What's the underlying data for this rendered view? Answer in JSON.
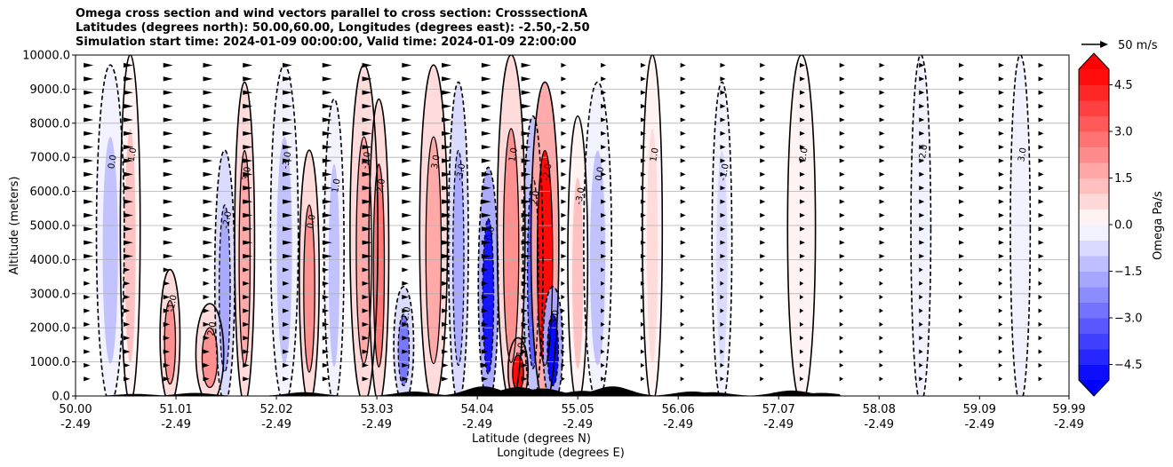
{
  "title_lines": [
    "Omega cross section and wind vectors parallel to cross section: CrosssectionA",
    "Latitudes (degrees north): 50.00,60.00, Longitudes (degrees east): -2.50,-2.50",
    "Simulation start time: 2024-01-09 00:00:00, Valid time: 2024-01-09 22:00:00"
  ],
  "reference_arrow_label": "50 m/s",
  "chart_data": {
    "type": "heatmap",
    "title": "Omega cross section and wind vectors parallel to cross section: CrosssectionA",
    "ylabel": "Altitude (meters)",
    "xlabel_line1": "Latitude (degrees N)",
    "xlabel_line2": "Longitude (degrees E)",
    "y_ticks": [
      "0.0",
      "1000.0",
      "2000.0",
      "3000.0",
      "4000.0",
      "5000.0",
      "6000.0",
      "7000.0",
      "8000.0",
      "9000.0",
      "10000.0"
    ],
    "ylim": [
      0,
      10000
    ],
    "x_ticks": [
      {
        "lat": "50.00",
        "lon": "-2.49"
      },
      {
        "lat": "51.01",
        "lon": "-2.49"
      },
      {
        "lat": "52.02",
        "lon": "-2.49"
      },
      {
        "lat": "53.03",
        "lon": "-2.49"
      },
      {
        "lat": "54.04",
        "lon": "-2.49"
      },
      {
        "lat": "55.05",
        "lon": "-2.49"
      },
      {
        "lat": "56.06",
        "lon": "-2.49"
      },
      {
        "lat": "57.07",
        "lon": "-2.49"
      },
      {
        "lat": "58.08",
        "lon": "-2.49"
      },
      {
        "lat": "59.09",
        "lon": "-2.49"
      },
      {
        "lat": "59.99",
        "lon": "-2.49"
      }
    ],
    "xlim": [
      50.0,
      59.99
    ],
    "grid": "horizontal",
    "colorbar": {
      "label": "Omega Pa/s",
      "range": [
        -5.0,
        5.0
      ],
      "step": 0.5,
      "tick_labels": [
        "4.5",
        "3.0",
        "1.5",
        "0.0",
        "−1.5",
        "−3.0",
        "−4.5"
      ],
      "tick_values": [
        4.5,
        3.0,
        1.5,
        0.0,
        -1.5,
        -3.0,
        -4.5
      ],
      "extend": "both",
      "colormap": "bwr"
    },
    "omega_features": [
      {
        "lat": 50.35,
        "alt_top": 9500,
        "omega": -1.0
      },
      {
        "lat": 50.55,
        "alt_top": 9800,
        "omega": 1.0
      },
      {
        "lat": 50.95,
        "alt_top": 3500,
        "omega": 2.0
      },
      {
        "lat": 51.35,
        "alt_top": 2500,
        "omega": 2.0
      },
      {
        "lat": 51.5,
        "alt_top": 7000,
        "omega": -1.5
      },
      {
        "lat": 51.7,
        "alt_top": 9000,
        "omega": 1.5
      },
      {
        "lat": 52.1,
        "alt_top": 9500,
        "omega": -1.0
      },
      {
        "lat": 52.35,
        "alt_top": 7000,
        "omega": 2.0
      },
      {
        "lat": 52.6,
        "alt_top": 8500,
        "omega": -1.0
      },
      {
        "lat": 52.9,
        "alt_top": 9500,
        "omega": 1.5
      },
      {
        "lat": 53.05,
        "alt_top": 8500,
        "omega": 2.5
      },
      {
        "lat": 53.3,
        "alt_top": 3000,
        "omega": -2.5
      },
      {
        "lat": 53.6,
        "alt_top": 9500,
        "omega": 1.5
      },
      {
        "lat": 53.85,
        "alt_top": 9000,
        "omega": -1.5
      },
      {
        "lat": 54.15,
        "alt_top": 6500,
        "omega": -4.5
      },
      {
        "lat": 54.38,
        "alt_top": 9800,
        "omega": 2.0
      },
      {
        "lat": 54.45,
        "alt_top": 1500,
        "omega": 5.0
      },
      {
        "lat": 54.6,
        "alt_top": 8000,
        "omega": -3.0
      },
      {
        "lat": 54.72,
        "alt_top": 9000,
        "omega": 5.0
      },
      {
        "lat": 54.8,
        "alt_top": 3000,
        "omega": -5.0
      },
      {
        "lat": 55.05,
        "alt_top": 8000,
        "omega": 1.0
      },
      {
        "lat": 55.25,
        "alt_top": 9000,
        "omega": -1.0
      },
      {
        "lat": 55.8,
        "alt_top": 9800,
        "omega": 0.5
      },
      {
        "lat": 56.5,
        "alt_top": 9000,
        "omega": -0.5
      },
      {
        "lat": 57.3,
        "alt_top": 9800,
        "omega": 0.3
      },
      {
        "lat": 58.5,
        "alt_top": 9800,
        "omega": -0.3
      },
      {
        "lat": 59.5,
        "alt_top": 9800,
        "omega": -0.3
      }
    ],
    "contour_labels": [
      "0.0",
      "1.0",
      "-1.0",
      "2.0",
      "-2.0",
      "3.0",
      "-3.0"
    ]
  }
}
